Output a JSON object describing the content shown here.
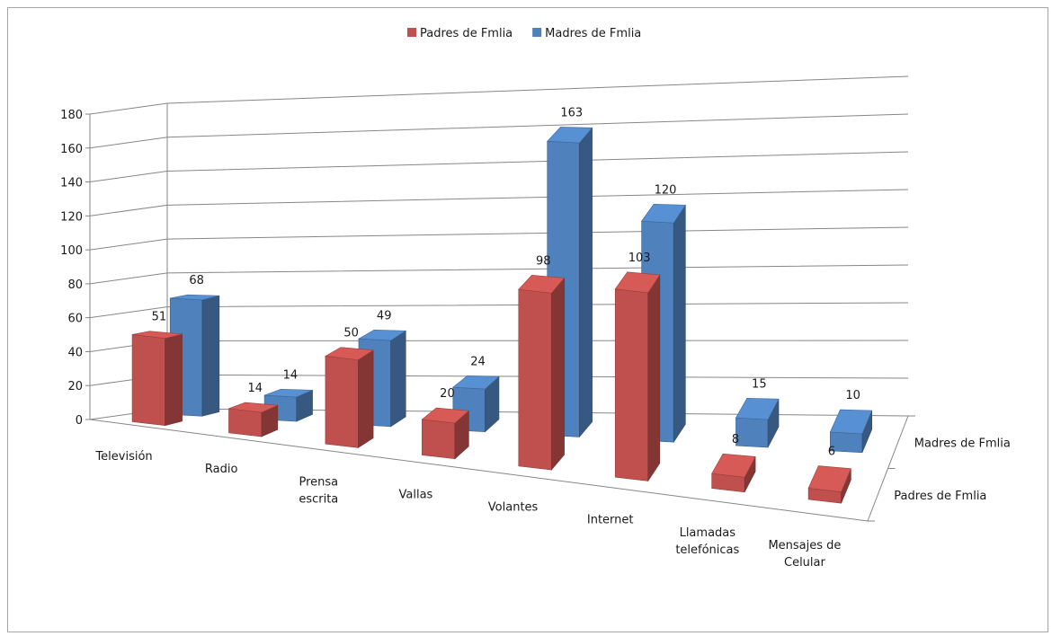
{
  "chart_data": {
    "type": "bar",
    "variant": "3d-column",
    "title": "",
    "xlabel": "",
    "ylabel": "",
    "ylim": [
      0,
      180
    ],
    "yticks": [
      0,
      20,
      40,
      60,
      80,
      100,
      120,
      140,
      160,
      180
    ],
    "grid": true,
    "legend_position": "top",
    "categories": [
      [
        "Televisión"
      ],
      [
        "Radio"
      ],
      [
        "Prensa",
        "escrita"
      ],
      [
        "Vallas"
      ],
      [
        "Volantes"
      ],
      [
        "Internet"
      ],
      [
        "Llamadas",
        "telefónicas"
      ],
      [
        "Mensajes de",
        "Celular"
      ]
    ],
    "series": [
      {
        "name": "Padres de Fmlia",
        "color": "#c0504d",
        "values": [
          51,
          14,
          50,
          20,
          98,
          103,
          8,
          6
        ]
      },
      {
        "name": "Madres de Fmlia",
        "color": "#4f81bd",
        "values": [
          68,
          14,
          49,
          24,
          163,
          120,
          15,
          10
        ]
      }
    ]
  }
}
